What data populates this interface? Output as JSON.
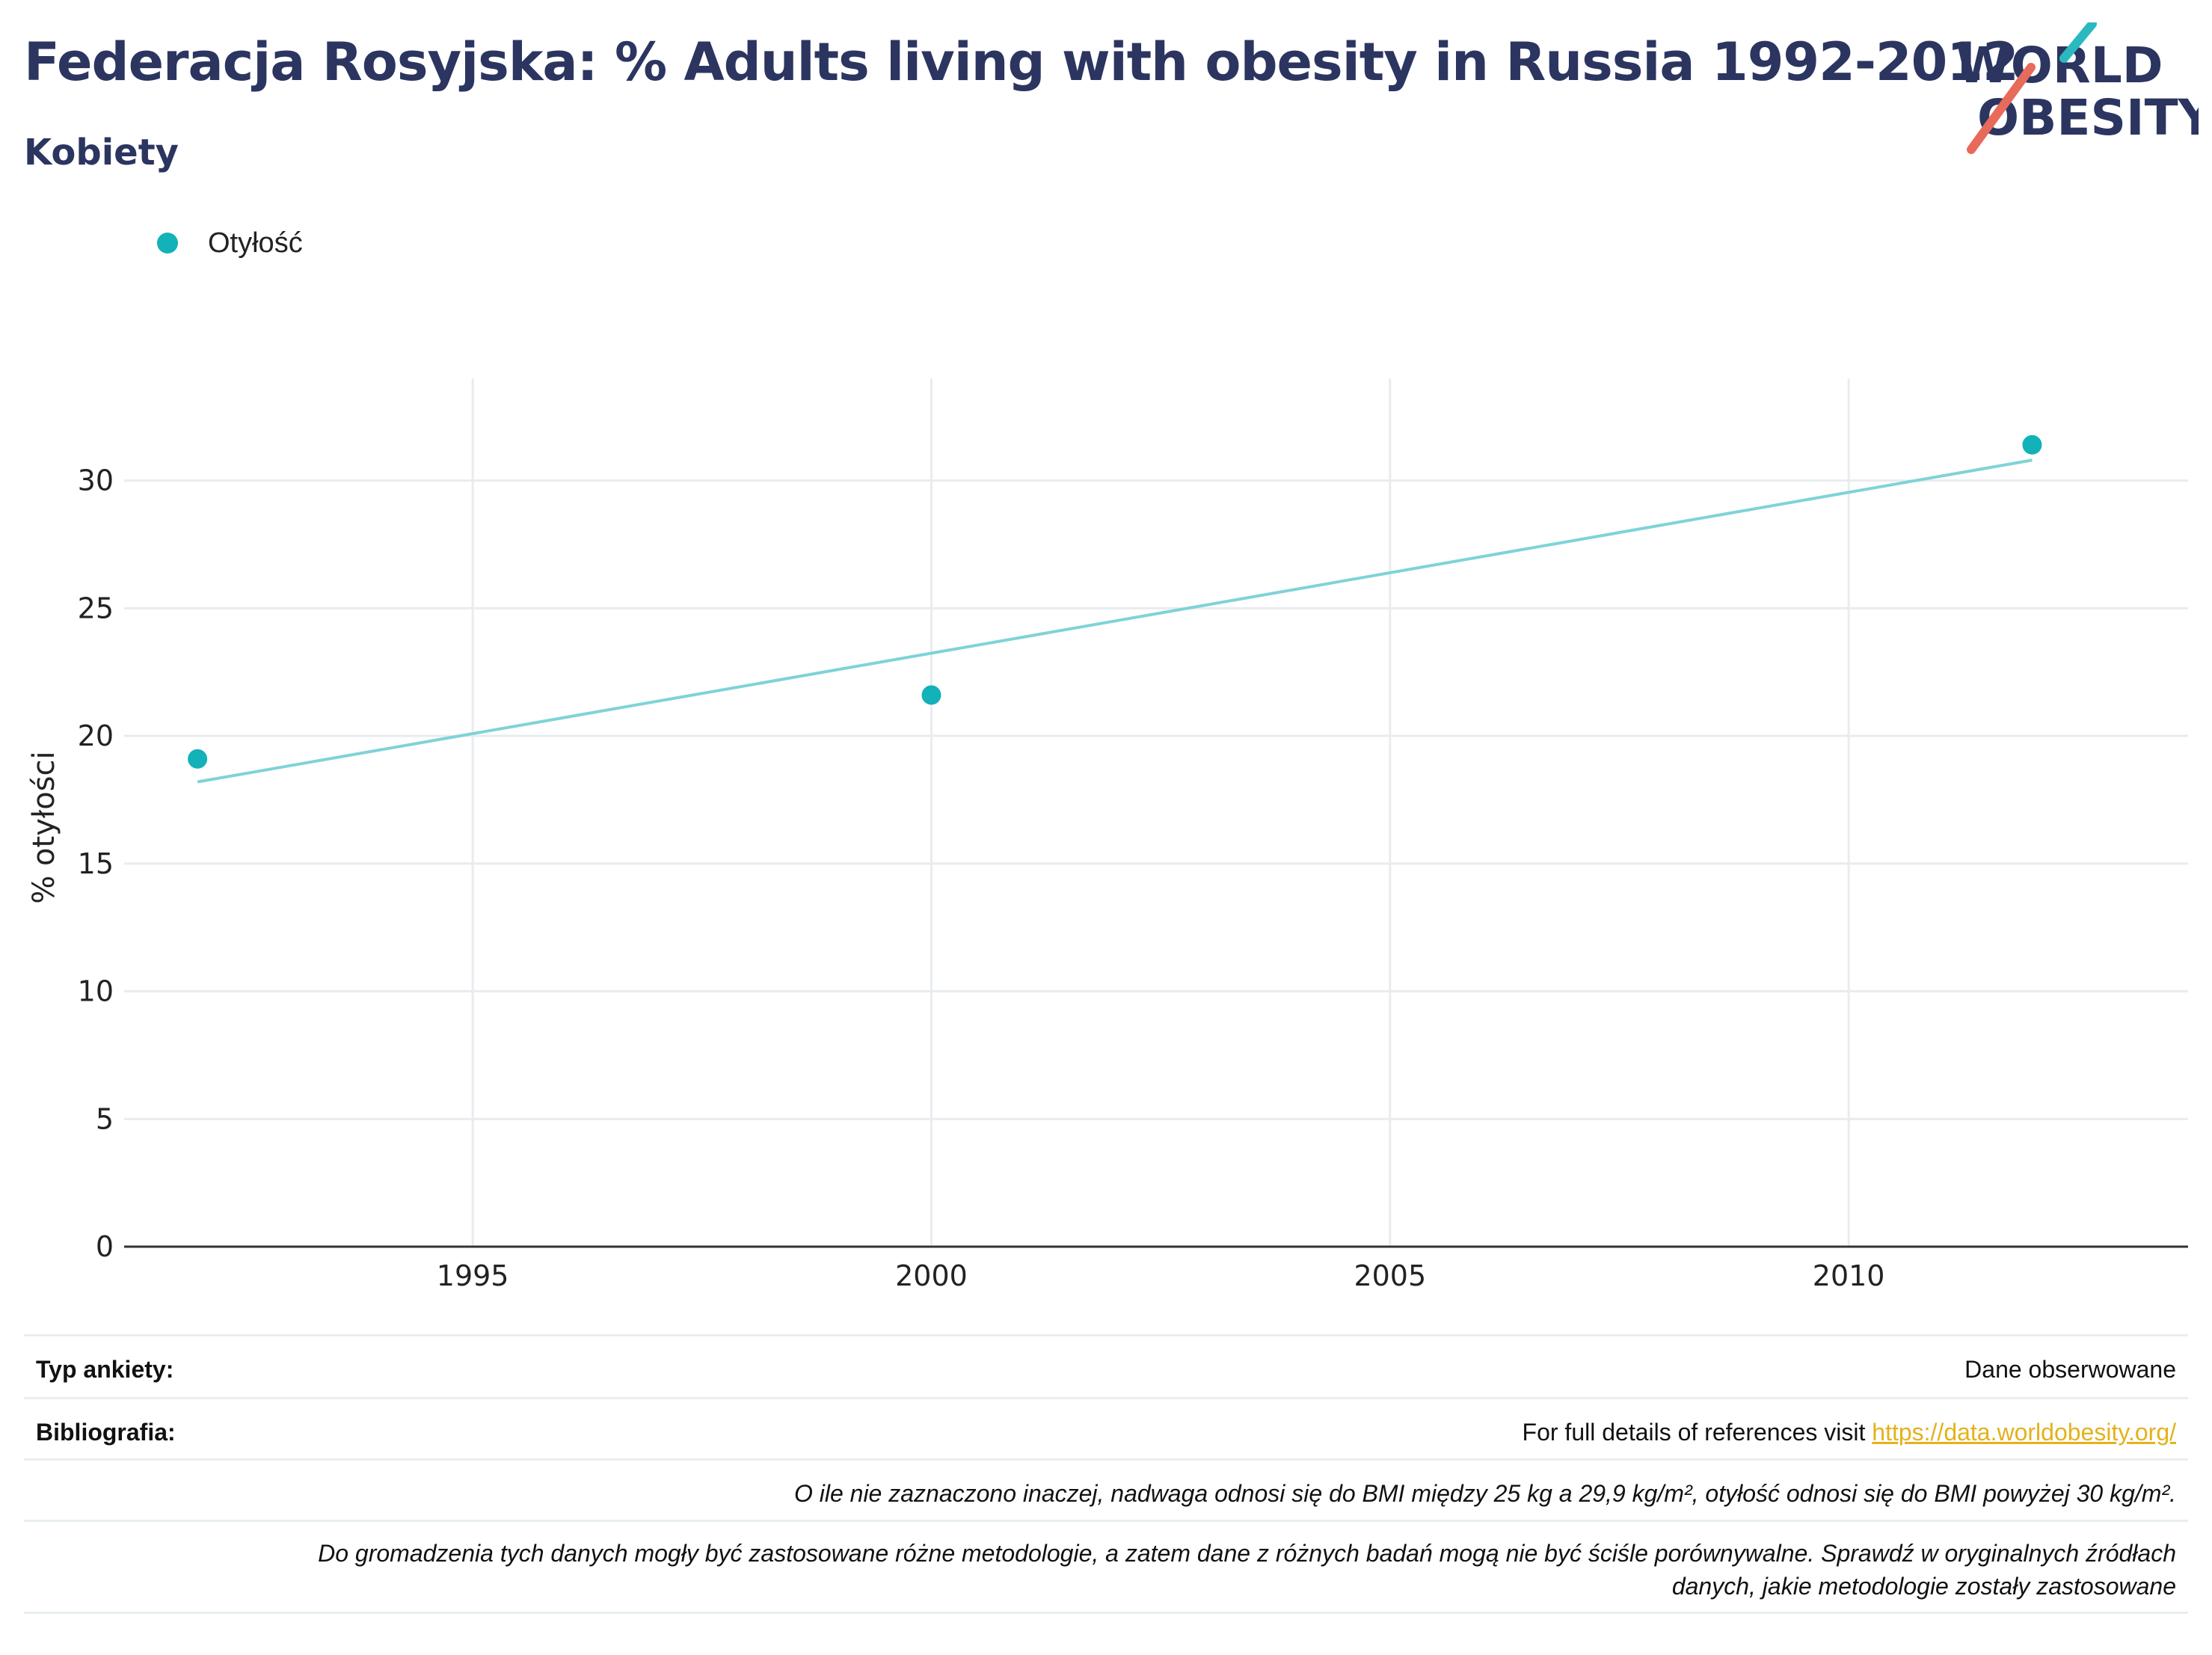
{
  "header": {
    "title": "Federacja Rosyjska: % Adults living with obesity in Russia 1992-2012",
    "subtitle": "Kobiety"
  },
  "logo": {
    "line1": "WORLD",
    "line2": "OBESITY",
    "accent_teal": "#2bb9bf",
    "accent_red": "#e76a5a",
    "text_color": "#2b3560"
  },
  "legend": {
    "items": [
      {
        "label": "Otyłość",
        "color": "#13b1b8"
      }
    ]
  },
  "chart_data": {
    "type": "scatter",
    "ylabel": "% otyłości",
    "xlabel": "",
    "xlim": [
      1991.2,
      2013.7
    ],
    "ylim": [
      0,
      34
    ],
    "x_ticks": [
      1995,
      2000,
      2005,
      2010
    ],
    "y_ticks": [
      0,
      5,
      10,
      15,
      20,
      25,
      30
    ],
    "grid": true,
    "series": [
      {
        "name": "Otyłość",
        "color": "#13b1b8",
        "points": [
          {
            "x": 1992,
            "y": 19.1
          },
          {
            "x": 2000,
            "y": 21.6
          },
          {
            "x": 2012,
            "y": 31.4
          }
        ]
      }
    ],
    "trendline": {
      "color": "#7fd3d7",
      "points": [
        {
          "x": 1992,
          "y": 18.2
        },
        {
          "x": 2012,
          "y": 30.8
        }
      ]
    }
  },
  "info": {
    "survey_type_label": "Typ ankiety:",
    "survey_type_value": "Dane obserwowane",
    "bibliography_label": "Bibliografia:",
    "bibliography_text": "For full details of references visit ",
    "bibliography_link": "https://data.worldobesity.org/",
    "note1": "O ile nie zaznaczono inaczej, nadwaga odnosi się do BMI między 25 kg a 29,9 kg/m², otyłość odnosi się do BMI powyżej 30 kg/m².",
    "note2_line1": "Do gromadzenia tych danych mogły być zastosowane różne metodologie, a zatem dane z różnych badań mogą nie być ściśle porównywalne. Sprawdź w oryginalnych źródłach",
    "note2_line2": "danych, jakie metodologie zostały zastosowane"
  }
}
